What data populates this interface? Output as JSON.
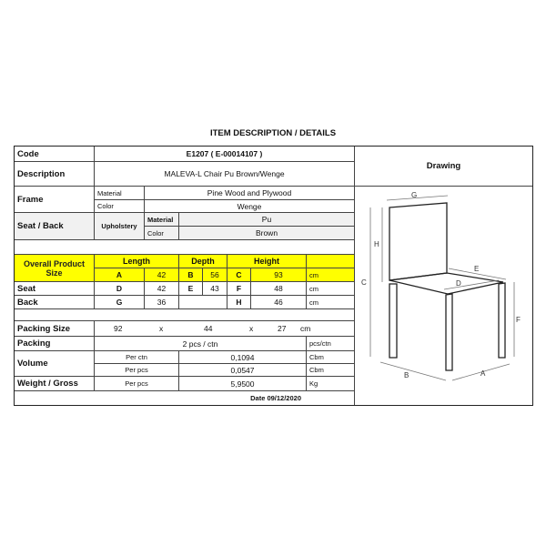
{
  "title": "ITEM DESCRIPTION / DETAILS",
  "code": {
    "label": "Code",
    "value": "E1207  ( E-00014107 )"
  },
  "description": {
    "label": "Description",
    "value": "MALEVA-L Chair Pu Brown/Wenge"
  },
  "frame": {
    "label": "Frame",
    "material_label": "Material",
    "material": "Pine Wood and Plywood",
    "color_label": "Color",
    "color": "Wenge"
  },
  "seat_back": {
    "label": "Seat / Back",
    "upholstery": "Upholstery",
    "material_label": "Material",
    "material": "Pu",
    "color_label": "Color",
    "color": "Brown"
  },
  "overall": {
    "label1": "Overall Product",
    "label2": "Size",
    "length": "Length",
    "depth": "Depth",
    "height": "Height",
    "a": "A",
    "a_val": "42",
    "b": "B",
    "b_val": "56",
    "c": "C",
    "c_val": "93",
    "unit": "cm"
  },
  "seat": {
    "label": "Seat",
    "d": "D",
    "d_val": "42",
    "e": "E",
    "e_val": "43",
    "f": "F",
    "f_val": "48",
    "unit": "cm"
  },
  "back": {
    "label": "Back",
    "g": "G",
    "g_val": "36",
    "h": "H",
    "h_val": "46",
    "unit": "cm"
  },
  "packing_size": {
    "label": "Packing Size",
    "l": "92",
    "x1": "x",
    "w": "44",
    "x2": "x",
    "h": "27",
    "unit": "cm"
  },
  "packing": {
    "label": "Packing",
    "value": "2 pcs / ctn",
    "unit": "pcs/ctn"
  },
  "volume": {
    "label": "Volume",
    "per_ctn": "Per ctn",
    "ctn_val": "0,1094",
    "ctn_unit": "Cbm",
    "per_pcs": "Per pcs",
    "pcs_val": "0,0547",
    "pcs_unit": "Cbm"
  },
  "weight": {
    "label": "Weight / Gross",
    "per_pcs": "Per pcs",
    "value": "5,9500",
    "unit": "Kg"
  },
  "date": "Date 09/12/2020",
  "drawing": {
    "label": "Drawing",
    "dims": [
      "G",
      "H",
      "C",
      "E",
      "D",
      "F",
      "B",
      "A"
    ]
  },
  "colors": {
    "highlight": "#ffff00"
  }
}
